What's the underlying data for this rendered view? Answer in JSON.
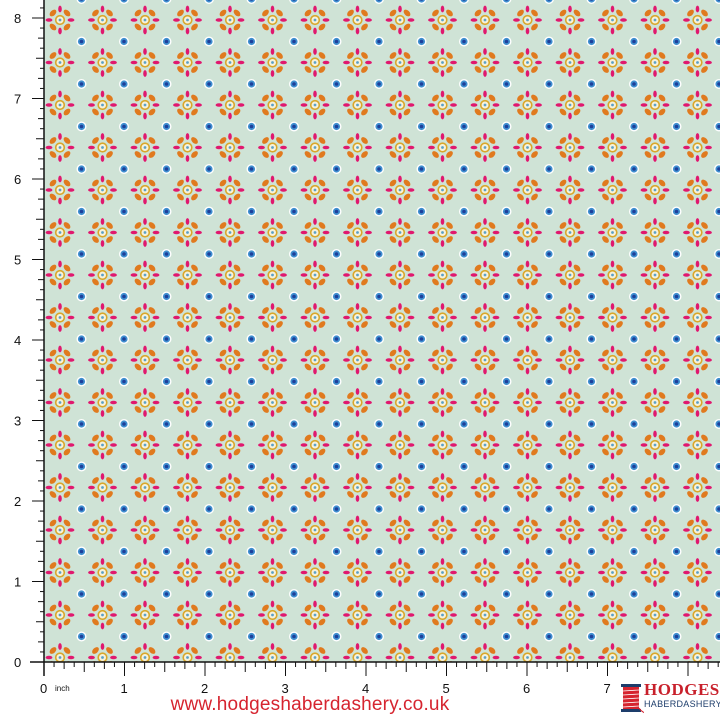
{
  "product": {
    "fabric_colors": {
      "background": "#cfe3d6",
      "orange": "#e07a1e",
      "pink": "#e0186e",
      "ring": "#d9a72a",
      "blue": "#2a62b8",
      "white": "#ffffff"
    },
    "pattern_description_icons": [
      "flower-motif-icon",
      "blue-dot-icon"
    ]
  },
  "ruler": {
    "vertical_labels": [
      "0",
      "1",
      "2",
      "3",
      "4",
      "5",
      "6",
      "7",
      "8"
    ],
    "horizontal_labels": [
      "0",
      "1",
      "2",
      "3",
      "4",
      "5",
      "6",
      "7"
    ],
    "unit": "inch"
  },
  "footer": {
    "url": "www.hodgeshaberdashery.co.uk",
    "url_color": "#d6242f"
  },
  "logo": {
    "line1": "HODGES",
    "line2": "HABERDASHERY"
  }
}
